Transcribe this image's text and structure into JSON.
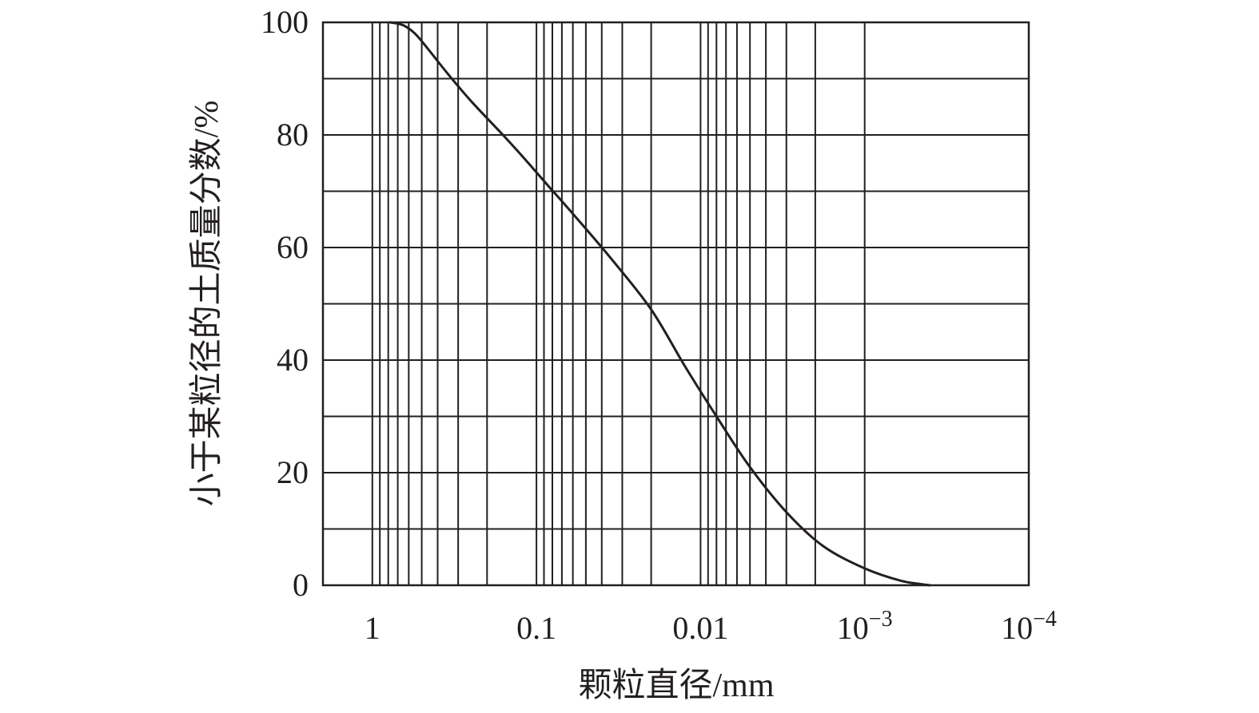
{
  "chart_data": {
    "type": "line",
    "xscale": "log",
    "x_reversed": true,
    "xlim": [
      2,
      0.0001
    ],
    "ylim": [
      0,
      100
    ],
    "grid": true,
    "xlabel": {
      "main": "颗粒直径",
      "unit": "/mm"
    },
    "ylabel": {
      "main": "小于某粒径的土质量分数",
      "unit": "/%"
    },
    "x_ticks": [
      {
        "value": 1,
        "text": "1"
      },
      {
        "value": 0.1,
        "text": "0.1"
      },
      {
        "value": 0.01,
        "text": "0.01"
      },
      {
        "value": 0.001,
        "base": "10",
        "exp": "−3"
      },
      {
        "value": 0.0001,
        "base": "10",
        "exp": "−4"
      }
    ],
    "y_ticks": [
      {
        "value": 0,
        "text": "0"
      },
      {
        "value": 20,
        "text": "20"
      },
      {
        "value": 40,
        "text": "40"
      },
      {
        "value": 60,
        "text": "60"
      },
      {
        "value": 80,
        "text": "80"
      },
      {
        "value": 100,
        "text": "100"
      }
    ],
    "series": [
      {
        "x": [
          0.78,
          0.65,
          0.55,
          0.45,
          0.35,
          0.25,
          0.16,
          0.12,
          0.085,
          0.06,
          0.035,
          0.02,
          0.0125,
          0.008,
          0.005,
          0.003,
          0.0018,
          0.001,
          0.0006,
          0.0004
        ],
        "y": [
          100,
          99.5,
          98,
          95,
          91,
          86,
          80,
          76,
          71,
          66,
          58,
          49,
          39,
          30,
          21,
          13,
          7,
          3,
          0.8,
          0
        ]
      }
    ]
  }
}
